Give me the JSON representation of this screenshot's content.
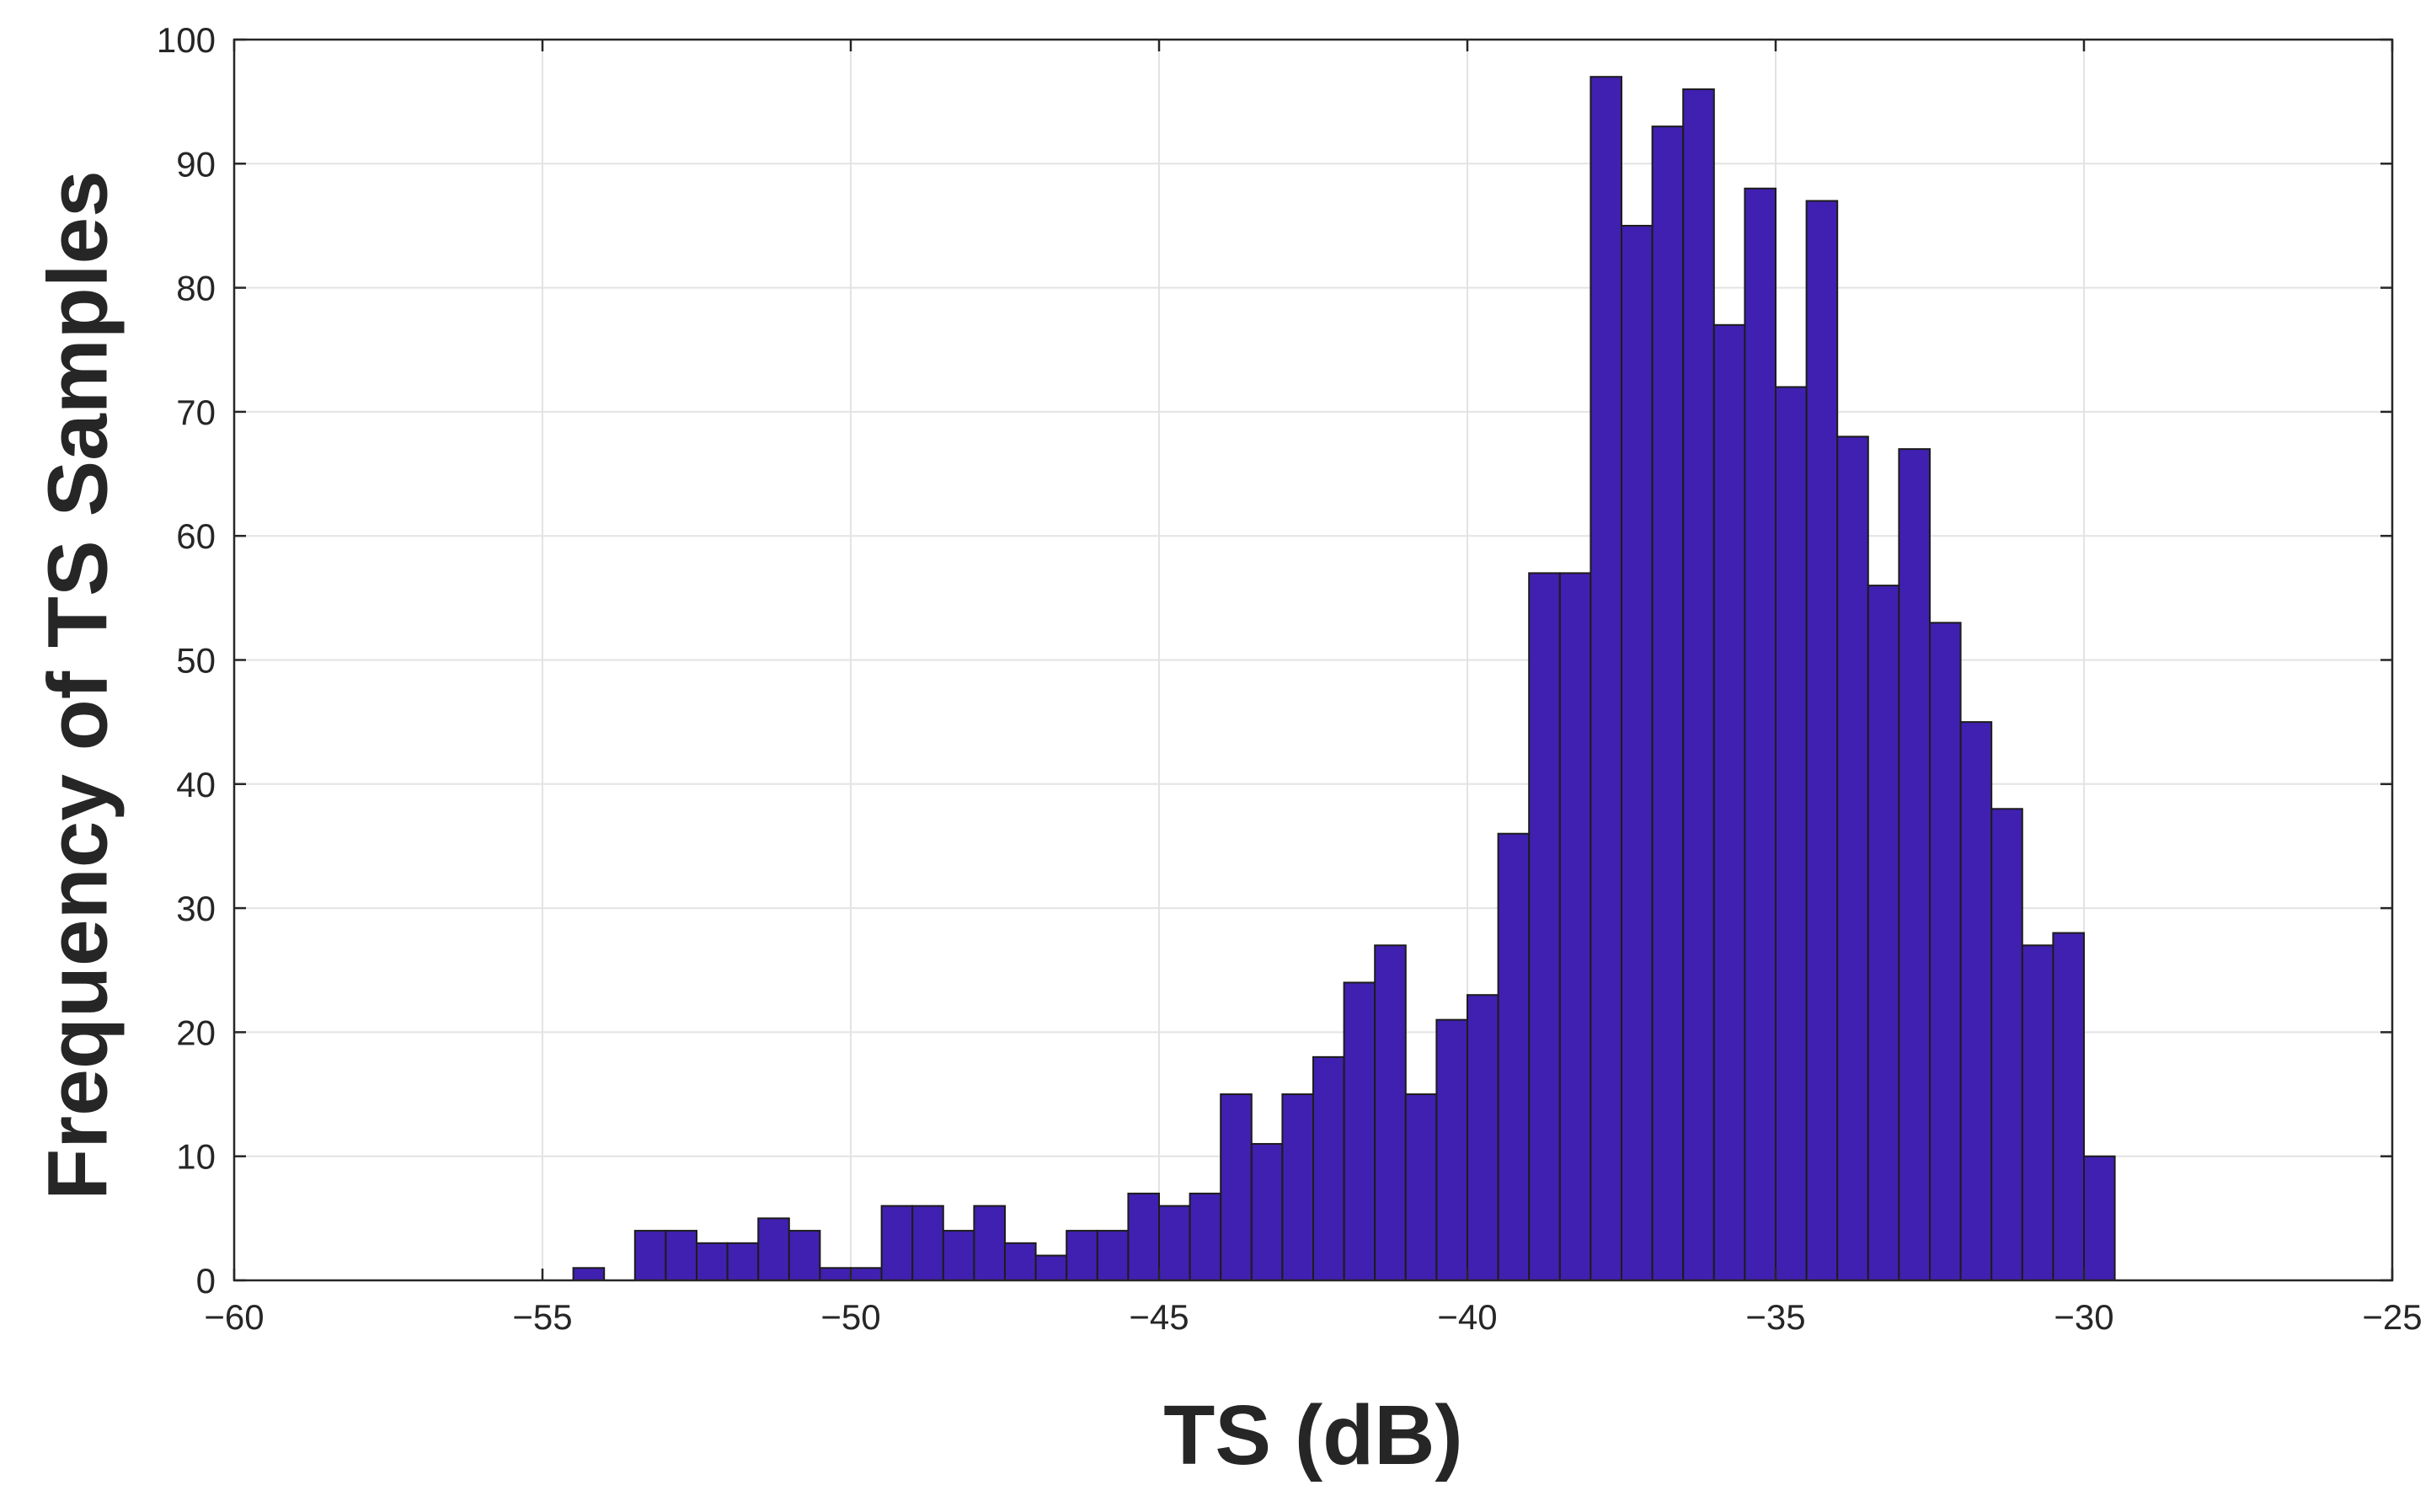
{
  "chart_data": {
    "type": "bar",
    "subtype": "histogram",
    "title": "",
    "xlabel": "TS (dB)",
    "ylabel": "Frequency of TS Samples",
    "xlim": [
      -60,
      -25
    ],
    "ylim": [
      0,
      100
    ],
    "xticks": [
      -60,
      -55,
      -50,
      -45,
      -40,
      -35,
      -30,
      -25
    ],
    "xtick_labels": [
      "−60",
      "−55",
      "−50",
      "−45",
      "−40",
      "−35",
      "−30",
      "−25"
    ],
    "yticks": [
      0,
      10,
      20,
      30,
      40,
      50,
      60,
      70,
      80,
      90,
      100
    ],
    "ytick_labels": [
      "0",
      "10",
      "20",
      "30",
      "40",
      "50",
      "60",
      "70",
      "80",
      "90",
      "100"
    ],
    "grid": true,
    "box": true,
    "bar_color": "#4020B0",
    "edge_color": "#1c1c1c",
    "bin_width": 0.5,
    "bin_start": -55,
    "values": [
      0,
      1,
      0,
      4,
      4,
      3,
      3,
      5,
      4,
      1,
      1,
      6,
      6,
      4,
      6,
      3,
      2,
      4,
      4,
      7,
      6,
      7,
      15,
      11,
      15,
      18,
      24,
      27,
      15,
      21,
      23,
      36,
      57,
      57,
      97,
      85,
      93,
      96,
      77,
      88,
      72,
      87,
      68,
      56,
      67,
      53,
      45,
      38,
      27,
      28,
      10,
      0
    ]
  }
}
